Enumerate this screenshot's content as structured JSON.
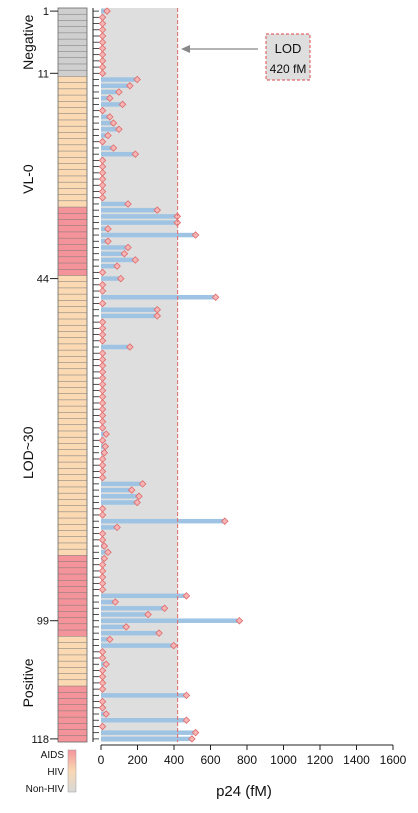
{
  "chart_data": {
    "type": "bar",
    "orientation": "horizontal",
    "xlabel": "p24 (fM)",
    "x_ticks": [
      "0",
      "200",
      "400",
      "600",
      "800",
      "1000",
      "1200",
      "1400",
      "1600"
    ],
    "xlim": [
      0,
      1600
    ],
    "sample_count": 118,
    "row_ticks": [
      "1",
      "11",
      "44",
      "99",
      "118"
    ],
    "row_tick_positions": [
      1,
      11,
      44,
      99,
      118
    ],
    "groups": [
      {
        "label": "Negative",
        "from": 1,
        "to": 11
      },
      {
        "label": "VL-0",
        "from": 12,
        "to": 44
      },
      {
        "label": "LOD~30",
        "from": 45,
        "to": 99
      },
      {
        "label": "Positive",
        "from": 100,
        "to": 118
      }
    ],
    "status_segments": [
      {
        "status": "Non-HIV",
        "from": 1,
        "to": 11
      },
      {
        "status": "HIV",
        "from": 12,
        "to": 32
      },
      {
        "status": "AIDS",
        "from": 33,
        "to": 43
      },
      {
        "status": "HIV",
        "from": 44,
        "to": 88
      },
      {
        "status": "AIDS",
        "from": 89,
        "to": 101
      },
      {
        "status": "HIV",
        "from": 102,
        "to": 109
      },
      {
        "status": "AIDS",
        "from": 110,
        "to": 118
      }
    ],
    "status_legend": [
      "AIDS",
      "HIV",
      "Non-HIV"
    ],
    "lod": {
      "value": 420,
      "label": "LOD",
      "value_label": "420 fM"
    },
    "colors": {
      "bar": "#9fc3e2",
      "marker_fill": "#f5b5b5",
      "marker_stroke": "#e06a6a",
      "lod_region": "#dedede",
      "lod_line": "#e06a6a",
      "aids": "#f4949a",
      "hiv": "#fad9b3",
      "non_hiv": "#cfcfcf"
    },
    "values": [
      25,
      0,
      0,
      0,
      0,
      0,
      0,
      0,
      0,
      0,
      0,
      190,
      150,
      90,
      40,
      110,
      0,
      40,
      60,
      90,
      30,
      0,
      60,
      180,
      0,
      0,
      0,
      0,
      0,
      0,
      0,
      140,
      300,
      410,
      410,
      30,
      510,
      30,
      140,
      120,
      180,
      80,
      0,
      100,
      0,
      0,
      620,
      0,
      300,
      300,
      0,
      0,
      0,
      0,
      150,
      0,
      0,
      0,
      0,
      0,
      0,
      0,
      0,
      0,
      0,
      0,
      0,
      0,
      20,
      0,
      15,
      10,
      0,
      0,
      0,
      0,
      220,
      160,
      200,
      190,
      0,
      0,
      670,
      80,
      0,
      0,
      10,
      30,
      10,
      0,
      0,
      0,
      0,
      0,
      460,
      70,
      340,
      250,
      750,
      130,
      310,
      40,
      390,
      0,
      0,
      20,
      0,
      0,
      0,
      0,
      460,
      0,
      0,
      20,
      460,
      0,
      510,
      490
    ]
  }
}
